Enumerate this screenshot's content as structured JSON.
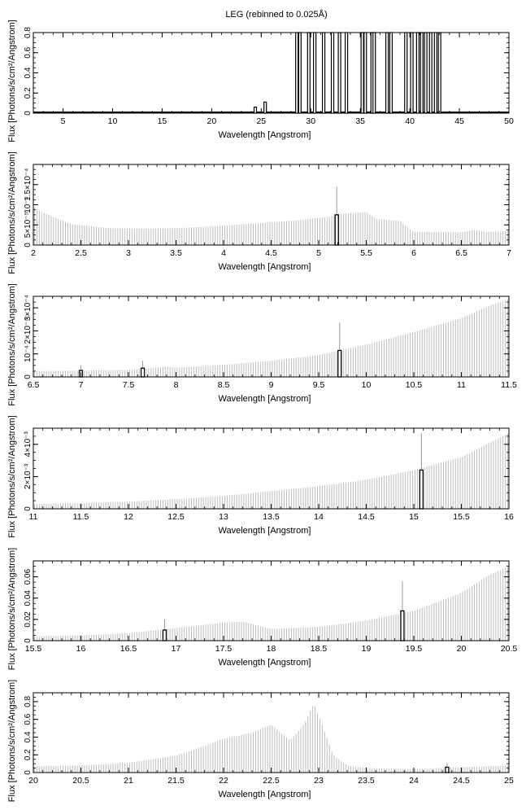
{
  "figure_title": "LEG (rebinned to 0.025Å)",
  "chart_data": [
    {
      "type": "bar",
      "xlabel": "Wavelength [Angstrom]",
      "ylabel": "Flux [Photons/s/cm²/Angstrom]",
      "xlim": [
        2,
        50
      ],
      "ylim": [
        0,
        0.8
      ],
      "xticks": [
        "5",
        "10",
        "15",
        "20",
        "25",
        "30",
        "35",
        "40",
        "45",
        "50"
      ],
      "yticks": [
        "0",
        "0.2",
        "0.4",
        "0.6",
        "0.8"
      ],
      "grid": false,
      "baseline": 0.01,
      "spikes": [
        {
          "x": 24.4,
          "y": 0.06
        },
        {
          "x": 25.4,
          "y": 0.11
        },
        {
          "x": 28.6,
          "y": 0.8
        },
        {
          "x": 28.9,
          "y": 0.8
        },
        {
          "x": 29.8,
          "y": 0.8
        },
        {
          "x": 30.4,
          "y": 0.8
        },
        {
          "x": 31.3,
          "y": 0.8
        },
        {
          "x": 32.2,
          "y": 0.8
        },
        {
          "x": 32.9,
          "y": 0.8
        },
        {
          "x": 33.6,
          "y": 0.8
        },
        {
          "x": 35.2,
          "y": 0.8
        },
        {
          "x": 35.5,
          "y": 0.8
        },
        {
          "x": 36.2,
          "y": 0.8
        },
        {
          "x": 36.4,
          "y": 0.8
        },
        {
          "x": 37.7,
          "y": 0.8
        },
        {
          "x": 38.1,
          "y": 0.8
        },
        {
          "x": 39.6,
          "y": 0.8
        },
        {
          "x": 40.2,
          "y": 0.8
        },
        {
          "x": 40.8,
          "y": 0.8
        },
        {
          "x": 41.2,
          "y": 0.8
        },
        {
          "x": 41.6,
          "y": 0.8
        },
        {
          "x": 42.1,
          "y": 0.8
        },
        {
          "x": 42.6,
          "y": 0.8
        },
        {
          "x": 43.0,
          "y": 0.8
        }
      ]
    },
    {
      "type": "bar",
      "xlabel": "Wavelength [Angstrom]",
      "ylabel": "Flux [Photons/s/cm²/Angstrom]",
      "xlim": [
        2,
        7
      ],
      "ylim": [
        0,
        0.0002
      ],
      "xticks": [
        "2",
        "2.5",
        "3",
        "3.5",
        "4",
        "4.5",
        "5",
        "5.5",
        "6",
        "6.5",
        "7"
      ],
      "yticks": [
        "0",
        "5×10⁻⁵",
        "10⁻⁴",
        "1.5×10⁻⁴"
      ],
      "grid": false,
      "bin_width": 0.025,
      "profile": [
        [
          2.0,
          9.5e-05
        ],
        [
          2.1,
          8e-05
        ],
        [
          2.4,
          5.2e-05
        ],
        [
          2.8,
          4.2e-05
        ],
        [
          3.2,
          4e-05
        ],
        [
          3.6,
          4.3e-05
        ],
        [
          4.0,
          4.8e-05
        ],
        [
          4.4,
          5.5e-05
        ],
        [
          4.8,
          6.2e-05
        ],
        [
          5.1,
          7e-05
        ],
        [
          5.25,
          7.8e-05
        ],
        [
          5.4,
          8e-05
        ],
        [
          5.5,
          8.2e-05
        ],
        [
          5.6,
          6.5e-05
        ],
        [
          5.85,
          6e-05
        ],
        [
          6.0,
          3.2e-05
        ],
        [
          6.5,
          3.2e-05
        ],
        [
          6.65,
          3.8e-05
        ],
        [
          6.75,
          3.2e-05
        ],
        [
          7.0,
          3.5e-05
        ]
      ],
      "highlights": [
        {
          "x": 5.19,
          "y": 7.5e-05,
          "err": 7e-05
        }
      ]
    },
    {
      "type": "bar",
      "xlabel": "Wavelength [Angstrom]",
      "ylabel": "Flux [Photons/s/cm²/Angstrom]",
      "xlim": [
        6.5,
        11.5
      ],
      "ylim": [
        0,
        0.00035
      ],
      "xticks": [
        "6.5",
        "7",
        "7.5",
        "8",
        "8.5",
        "9",
        "9.5",
        "10",
        "10.5",
        "11",
        "11.5"
      ],
      "yticks": [
        "0",
        "10⁻⁴",
        "2×10⁻⁴",
        "3×10⁻⁴"
      ],
      "grid": false,
      "bin_width": 0.025,
      "profile": [
        [
          6.5,
          2.5e-05
        ],
        [
          7.0,
          2.8e-05
        ],
        [
          7.5,
          3e-05
        ],
        [
          7.9,
          4.5e-05
        ],
        [
          8.0,
          4e-05
        ],
        [
          8.5,
          5.2e-05
        ],
        [
          9.0,
          7e-05
        ],
        [
          9.5,
          9.5e-05
        ],
        [
          10.0,
          0.00014
        ],
        [
          10.5,
          0.000195
        ],
        [
          11.0,
          0.000255
        ],
        [
          11.3,
          0.00031
        ],
        [
          11.5,
          0.00034
        ]
      ],
      "highlights": [
        {
          "x": 7.0,
          "y": 2.8e-05,
          "err": 2.2e-05
        },
        {
          "x": 7.65,
          "y": 3.8e-05,
          "err": 3.2e-05
        },
        {
          "x": 9.72,
          "y": 0.000115,
          "err": 0.00012
        }
      ]
    },
    {
      "type": "bar",
      "xlabel": "Wavelength [Angstrom]",
      "ylabel": "Flux [Photons/s/cm²/Angstrom]",
      "xlim": [
        11,
        16
      ],
      "ylim": [
        0,
        0.005
      ],
      "xticks": [
        "11",
        "11.5",
        "12",
        "12.5",
        "13",
        "13.5",
        "14",
        "14.5",
        "15",
        "15.5",
        "16"
      ],
      "yticks": [
        "0",
        "2×10⁻³",
        "4×10⁻³"
      ],
      "grid": false,
      "bin_width": 0.025,
      "profile": [
        [
          11.0,
          0.0003
        ],
        [
          11.5,
          0.00035
        ],
        [
          12.0,
          0.00045
        ],
        [
          12.5,
          0.0006
        ],
        [
          13.0,
          0.0008
        ],
        [
          13.5,
          0.0011
        ],
        [
          14.0,
          0.0014
        ],
        [
          14.5,
          0.0018
        ],
        [
          15.0,
          0.0024
        ],
        [
          15.5,
          0.0032
        ],
        [
          16.0,
          0.0047
        ]
      ],
      "highlights": [
        {
          "x": 15.08,
          "y": 0.0024,
          "err": 0.0023
        }
      ]
    },
    {
      "type": "bar",
      "xlabel": "Wavelength [Angstrom]",
      "ylabel": "Flux [Photons/s/cm²/Angstrom]",
      "xlim": [
        15.5,
        20.5
      ],
      "ylim": [
        0,
        0.075
      ],
      "xticks": [
        "15.5",
        "16",
        "16.5",
        "17",
        "17.5",
        "18",
        "18.5",
        "19",
        "19.5",
        "20",
        "20.5"
      ],
      "yticks": [
        "0",
        "0.02",
        "0.04",
        "0.06"
      ],
      "grid": false,
      "bin_width": 0.025,
      "profile": [
        [
          15.5,
          0.004
        ],
        [
          16.0,
          0.005
        ],
        [
          16.5,
          0.007
        ],
        [
          17.0,
          0.012
        ],
        [
          17.5,
          0.017
        ],
        [
          17.7,
          0.018
        ],
        [
          18.0,
          0.011
        ],
        [
          18.5,
          0.013
        ],
        [
          19.0,
          0.019
        ],
        [
          19.5,
          0.028
        ],
        [
          20.0,
          0.045
        ],
        [
          20.3,
          0.062
        ],
        [
          20.5,
          0.07
        ]
      ],
      "highlights": [
        {
          "x": 16.88,
          "y": 0.01,
          "err": 0.01
        },
        {
          "x": 19.38,
          "y": 0.028,
          "err": 0.028
        }
      ]
    },
    {
      "type": "bar",
      "xlabel": "Wavelength [Angstrom]",
      "ylabel": "Flux [Photons/s/cm²/Angstrom]",
      "xlim": [
        20,
        25
      ],
      "ylim": [
        0,
        0.9
      ],
      "xticks": [
        "20",
        "20.5",
        "21",
        "21.5",
        "22",
        "22.5",
        "23",
        "23.5",
        "24",
        "24.5",
        "25"
      ],
      "yticks": [
        "0",
        "0.2",
        "0.4",
        "0.6",
        "0.8"
      ],
      "grid": false,
      "bin_width": 0.025,
      "profile": [
        [
          20.0,
          0.07
        ],
        [
          20.5,
          0.08
        ],
        [
          21.0,
          0.11
        ],
        [
          21.5,
          0.19
        ],
        [
          21.8,
          0.3
        ],
        [
          22.0,
          0.38
        ],
        [
          22.3,
          0.45
        ],
        [
          22.5,
          0.54
        ],
        [
          22.6,
          0.45
        ],
        [
          22.7,
          0.36
        ],
        [
          22.85,
          0.55
        ],
        [
          22.95,
          0.78
        ],
        [
          23.05,
          0.5
        ],
        [
          23.15,
          0.2
        ],
        [
          23.3,
          0.08
        ],
        [
          23.5,
          0.05
        ],
        [
          24.0,
          0.04
        ],
        [
          24.5,
          0.06
        ],
        [
          25.0,
          0.08
        ]
      ],
      "highlights": [
        {
          "x": 24.35,
          "y": 0.06,
          "err": 0.05
        }
      ]
    }
  ]
}
